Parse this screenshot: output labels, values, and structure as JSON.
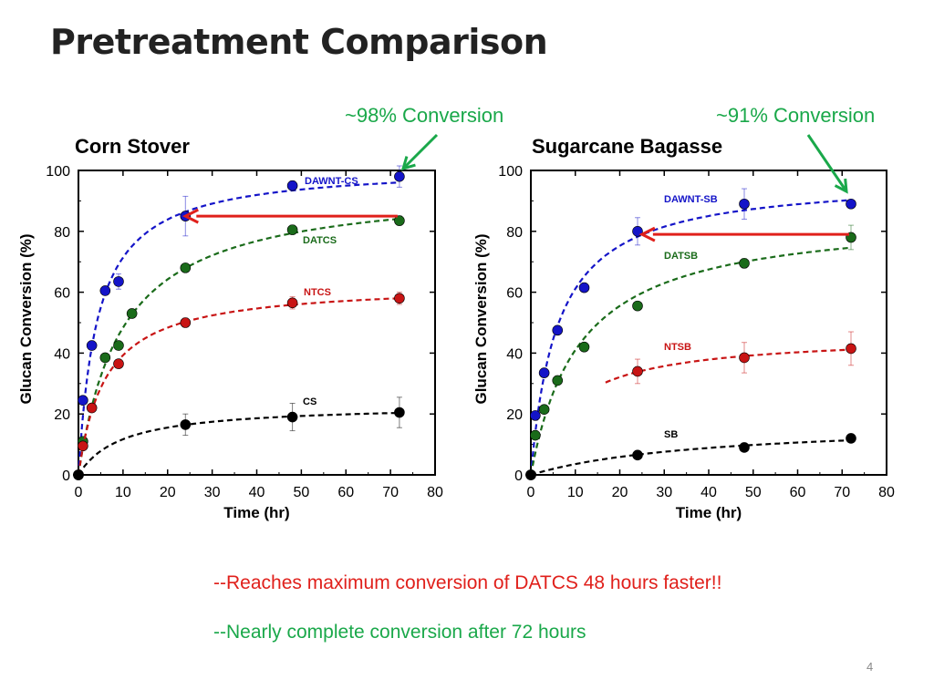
{
  "slide_title": "Pretreatment Comparison",
  "callouts": [
    {
      "text": "~98% Conversion",
      "color": "#1aa84a"
    },
    {
      "text": "~91% Conversion",
      "color": "#1aa84a"
    }
  ],
  "bullets": [
    {
      "text": "--Reaches maximum conversion of DATCS 48 hours faster!!",
      "color": "#e0201b"
    },
    {
      "text": "--Nearly complete conversion after 72 hours",
      "color": "#1aa84a"
    }
  ],
  "page_number": "4",
  "chart_data": [
    {
      "type": "scatter",
      "title": "Corn Stover",
      "xlabel": "Time (hr)",
      "ylabel": "Glucan Conversion (%)",
      "xlim": [
        0,
        80
      ],
      "ylim": [
        0,
        100
      ],
      "xticks": [
        0,
        10,
        20,
        30,
        40,
        50,
        60,
        70,
        80
      ],
      "yticks": [
        0,
        20,
        40,
        60,
        80,
        100
      ],
      "grid": false,
      "series": [
        {
          "name": "DAWNT-CS",
          "color": "#1414c8",
          "fit": "dashed",
          "x": [
            0,
            1,
            3,
            6,
            9,
            24,
            48,
            72
          ],
          "y": [
            0,
            24.5,
            42.5,
            60.5,
            63.5,
            85,
            95,
            98
          ],
          "err": [
            0,
            0,
            0,
            0,
            2.5,
            6.5,
            1.5,
            3.5
          ]
        },
        {
          "name": "DATCS",
          "color": "#1a6b1a",
          "fit": "dashed",
          "x": [
            0,
            1,
            6,
            9,
            12,
            24,
            48,
            72
          ],
          "y": [
            0,
            11,
            38.5,
            42.5,
            53,
            68,
            80.5,
            83.5
          ],
          "err": [
            0,
            0,
            0,
            0,
            0,
            0,
            1.5,
            1.5
          ]
        },
        {
          "name": "NTCS",
          "color": "#c81414",
          "fit": "dashed",
          "x": [
            0,
            1,
            3,
            9,
            24,
            48,
            72
          ],
          "y": [
            0,
            9.5,
            22,
            36.5,
            50,
            56.5,
            58
          ],
          "err": [
            0,
            0,
            0,
            0,
            1.5,
            2,
            2
          ]
        },
        {
          "name": "CS",
          "color": "#000000",
          "fit": "dashed",
          "x": [
            0,
            24,
            48,
            72
          ],
          "y": [
            0,
            16.5,
            19,
            20.5
          ],
          "err": [
            0,
            3.5,
            4.5,
            5
          ]
        }
      ],
      "annotation": {
        "type": "arrow",
        "from": [
          72,
          85
        ],
        "to": [
          24,
          85
        ],
        "color": "#e0201b"
      }
    },
    {
      "type": "scatter",
      "title": "Sugarcane Bagasse",
      "xlabel": "Time (hr)",
      "ylabel": "Glucan Conversion (%)",
      "xlim": [
        0,
        80
      ],
      "ylim": [
        0,
        100
      ],
      "xticks": [
        0,
        10,
        20,
        30,
        40,
        50,
        60,
        70,
        80
      ],
      "yticks": [
        0,
        20,
        40,
        60,
        80,
        100
      ],
      "grid": false,
      "series": [
        {
          "name": "DAWNT-SB",
          "color": "#1414c8",
          "fit": "dashed",
          "x": [
            0,
            1,
            3,
            6,
            12,
            24,
            48,
            72
          ],
          "y": [
            0,
            19.5,
            33.5,
            47.5,
            61.5,
            80,
            89,
            89
          ],
          "err": [
            0,
            0,
            0,
            0,
            0,
            4.5,
            5,
            1
          ]
        },
        {
          "name": "DATSB",
          "color": "#1a6b1a",
          "fit": "dashed",
          "x": [
            0,
            1,
            3,
            6,
            12,
            24,
            48,
            72
          ],
          "y": [
            0,
            13,
            21.5,
            31,
            42,
            55.5,
            69.5,
            78
          ],
          "err": [
            0,
            0,
            0,
            0,
            0,
            0,
            1.5,
            4
          ]
        },
        {
          "name": "NTSB",
          "color": "#c81414",
          "fit": "dashed",
          "x": [
            24,
            48,
            72
          ],
          "y": [
            34,
            38.5,
            41.5
          ],
          "err": [
            4,
            5,
            5.5
          ]
        },
        {
          "name": "SB",
          "color": "#000000",
          "fit": "dashed",
          "x": [
            0,
            24,
            48,
            72
          ],
          "y": [
            0,
            6.5,
            9,
            12
          ],
          "err": [
            0,
            0,
            0,
            0
          ]
        }
      ],
      "annotation": {
        "type": "arrow",
        "from": [
          72,
          79
        ],
        "to": [
          25,
          79
        ],
        "color": "#e0201b"
      }
    }
  ]
}
